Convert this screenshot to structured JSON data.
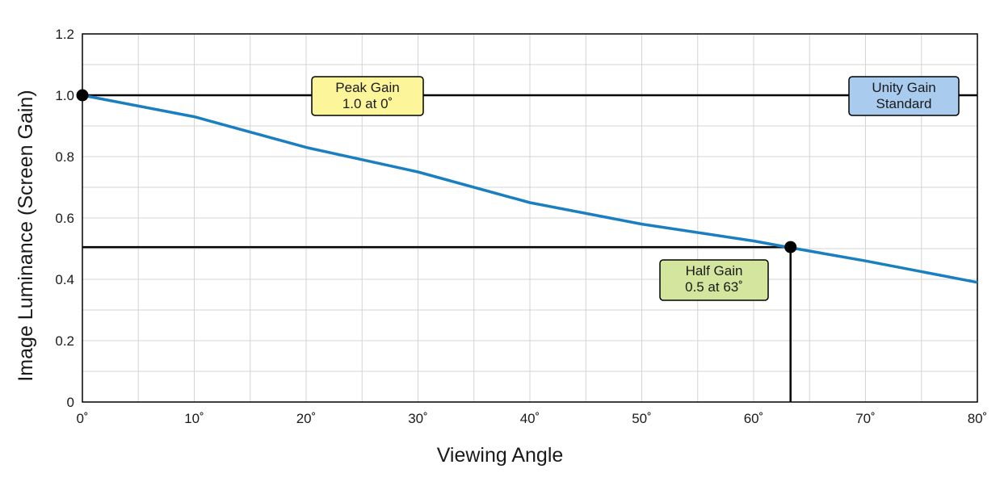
{
  "chart_data": {
    "type": "line",
    "xlabel": "Viewing Angle",
    "ylabel": "Image Luminance (Screen Gain)",
    "xlim": [
      0,
      80
    ],
    "ylim": [
      0,
      1.2
    ],
    "x_ticks": [
      "0˚",
      "10˚",
      "20˚",
      "30˚",
      "40˚",
      "50˚",
      "60˚",
      "70˚",
      "80˚"
    ],
    "x_tick_values": [
      0,
      10,
      20,
      30,
      40,
      50,
      60,
      70,
      80
    ],
    "y_ticks": [
      "0",
      "0.2",
      "0.4",
      "0.6",
      "0.8",
      "1.0",
      "1.2"
    ],
    "y_tick_values": [
      0,
      0.2,
      0.4,
      0.6,
      0.8,
      1.0,
      1.2
    ],
    "grid": true,
    "series": [
      {
        "color": "#1a7fc1",
        "x": [
          0,
          10,
          20,
          30,
          40,
          50,
          60,
          63,
          70,
          80
        ],
        "y": [
          1.0,
          0.93,
          0.83,
          0.75,
          0.65,
          0.58,
          0.525,
          0.505,
          0.46,
          0.39
        ]
      }
    ],
    "reference_lines": {
      "unity_gain": {
        "y": 1.0
      },
      "half_gain": {
        "y": 0.505,
        "x": 63.3
      }
    },
    "markers": [
      {
        "x": 0,
        "y": 1.0
      },
      {
        "x": 63.3,
        "y": 0.505
      }
    ],
    "annotations": [
      {
        "lines": [
          "Peak Gain",
          "1.0 at 0˚"
        ],
        "color": "#fdf59a"
      },
      {
        "lines": [
          "Unity Gain",
          "Standard"
        ],
        "color": "#a9cbee"
      },
      {
        "lines": [
          "Half Gain",
          "0.5 at 63˚"
        ],
        "color": "#d4e59d"
      }
    ]
  }
}
